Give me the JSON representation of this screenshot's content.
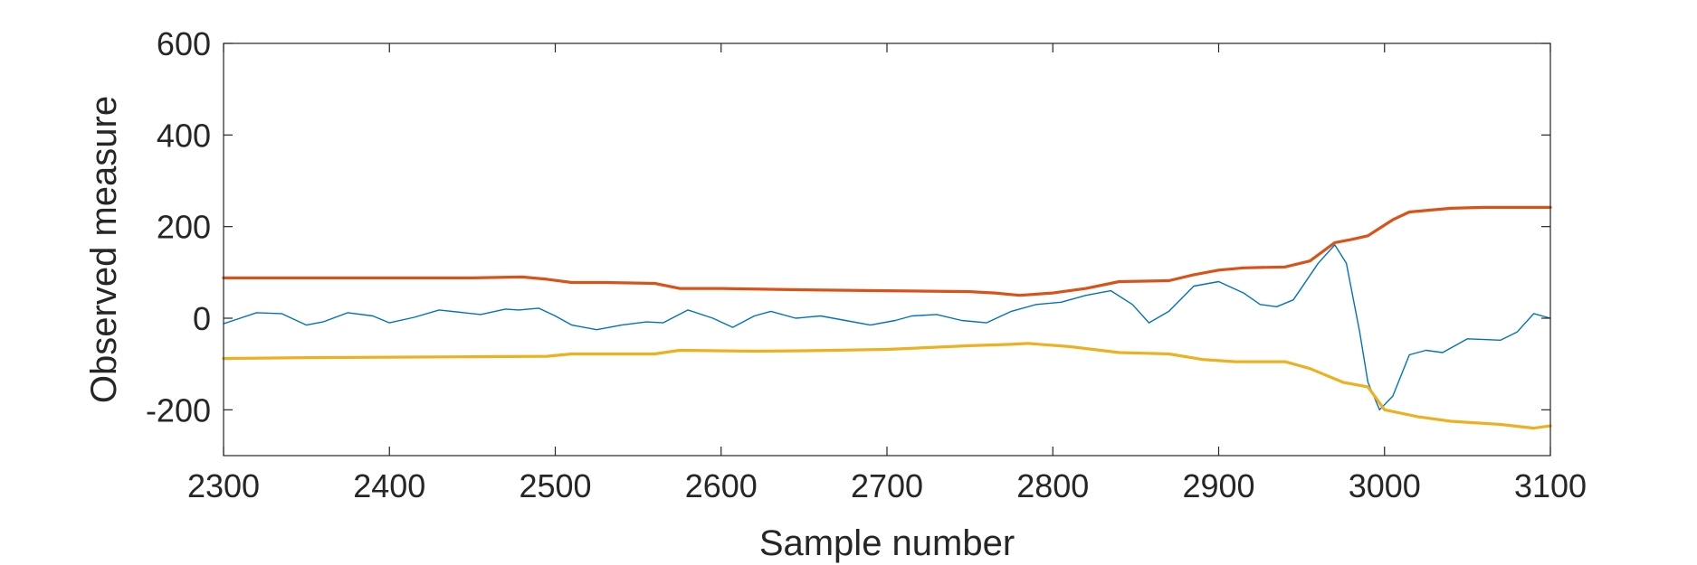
{
  "chart_data": {
    "type": "line",
    "title": "",
    "xlabel": "Sample number",
    "ylabel": "Observed measure",
    "xlim": [
      2300,
      3100
    ],
    "ylim": [
      -300,
      600
    ],
    "x_ticks": [
      2300,
      2400,
      2500,
      2600,
      2700,
      2800,
      2900,
      3000,
      3100
    ],
    "y_ticks": [
      600,
      400,
      200,
      0,
      -200
    ],
    "grid": false,
    "legend": "none",
    "colors": {
      "blue": "#0072BD",
      "orange": "#D95319",
      "yellow": "#EDB120",
      "axis": "#262626"
    },
    "series": [
      {
        "color": "#0072BD",
        "points": [
          [
            2300,
            -12
          ],
          [
            2310,
            0
          ],
          [
            2320,
            12
          ],
          [
            2335,
            10
          ],
          [
            2350,
            -15
          ],
          [
            2360,
            -8
          ],
          [
            2375,
            12
          ],
          [
            2390,
            5
          ],
          [
            2400,
            -10
          ],
          [
            2415,
            2
          ],
          [
            2430,
            18
          ],
          [
            2445,
            12
          ],
          [
            2455,
            8
          ],
          [
            2470,
            20
          ],
          [
            2478,
            18
          ],
          [
            2490,
            22
          ],
          [
            2500,
            5
          ],
          [
            2510,
            -15
          ],
          [
            2525,
            -25
          ],
          [
            2540,
            -15
          ],
          [
            2555,
            -8
          ],
          [
            2565,
            -10
          ],
          [
            2580,
            18
          ],
          [
            2595,
            0
          ],
          [
            2607,
            -20
          ],
          [
            2620,
            5
          ],
          [
            2630,
            15
          ],
          [
            2645,
            0
          ],
          [
            2660,
            5
          ],
          [
            2675,
            -5
          ],
          [
            2690,
            -15
          ],
          [
            2705,
            -5
          ],
          [
            2715,
            5
          ],
          [
            2730,
            8
          ],
          [
            2745,
            -5
          ],
          [
            2760,
            -10
          ],
          [
            2775,
            15
          ],
          [
            2790,
            30
          ],
          [
            2805,
            35
          ],
          [
            2820,
            50
          ],
          [
            2835,
            60
          ],
          [
            2848,
            30
          ],
          [
            2858,
            -10
          ],
          [
            2870,
            15
          ],
          [
            2885,
            70
          ],
          [
            2900,
            80
          ],
          [
            2915,
            55
          ],
          [
            2925,
            30
          ],
          [
            2935,
            25
          ],
          [
            2945,
            40
          ],
          [
            2960,
            120
          ],
          [
            2970,
            160
          ],
          [
            2977,
            120
          ],
          [
            2985,
            -30
          ],
          [
            2990,
            -140
          ],
          [
            2997,
            -200
          ],
          [
            3005,
            -170
          ],
          [
            3015,
            -80
          ],
          [
            3025,
            -70
          ],
          [
            3035,
            -75
          ],
          [
            3050,
            -45
          ],
          [
            3070,
            -48
          ],
          [
            3080,
            -30
          ],
          [
            3090,
            10
          ],
          [
            3100,
            0
          ]
        ]
      },
      {
        "color": "#D95319",
        "points": [
          [
            2300,
            88
          ],
          [
            2350,
            88
          ],
          [
            2400,
            88
          ],
          [
            2450,
            88
          ],
          [
            2480,
            90
          ],
          [
            2495,
            85
          ],
          [
            2510,
            78
          ],
          [
            2530,
            78
          ],
          [
            2560,
            76
          ],
          [
            2575,
            65
          ],
          [
            2600,
            65
          ],
          [
            2650,
            62
          ],
          [
            2700,
            60
          ],
          [
            2750,
            58
          ],
          [
            2765,
            55
          ],
          [
            2780,
            50
          ],
          [
            2800,
            55
          ],
          [
            2820,
            65
          ],
          [
            2840,
            80
          ],
          [
            2870,
            82
          ],
          [
            2885,
            95
          ],
          [
            2900,
            105
          ],
          [
            2915,
            110
          ],
          [
            2940,
            112
          ],
          [
            2955,
            125
          ],
          [
            2970,
            165
          ],
          [
            2980,
            172
          ],
          [
            2990,
            180
          ],
          [
            3005,
            215
          ],
          [
            3015,
            232
          ],
          [
            3040,
            240
          ],
          [
            3060,
            242
          ],
          [
            3100,
            242
          ]
        ]
      },
      {
        "color": "#EDB120",
        "points": [
          [
            2300,
            -88
          ],
          [
            2350,
            -86
          ],
          [
            2400,
            -85
          ],
          [
            2450,
            -84
          ],
          [
            2495,
            -83
          ],
          [
            2510,
            -78
          ],
          [
            2560,
            -78
          ],
          [
            2575,
            -70
          ],
          [
            2620,
            -72
          ],
          [
            2650,
            -71
          ],
          [
            2700,
            -68
          ],
          [
            2750,
            -60
          ],
          [
            2775,
            -57
          ],
          [
            2785,
            -55
          ],
          [
            2810,
            -62
          ],
          [
            2840,
            -75
          ],
          [
            2870,
            -78
          ],
          [
            2890,
            -90
          ],
          [
            2910,
            -95
          ],
          [
            2940,
            -95
          ],
          [
            2955,
            -110
          ],
          [
            2975,
            -140
          ],
          [
            2990,
            -150
          ],
          [
            3000,
            -200
          ],
          [
            3020,
            -215
          ],
          [
            3040,
            -225
          ],
          [
            3070,
            -232
          ],
          [
            3090,
            -240
          ],
          [
            3100,
            -235
          ]
        ]
      }
    ]
  }
}
